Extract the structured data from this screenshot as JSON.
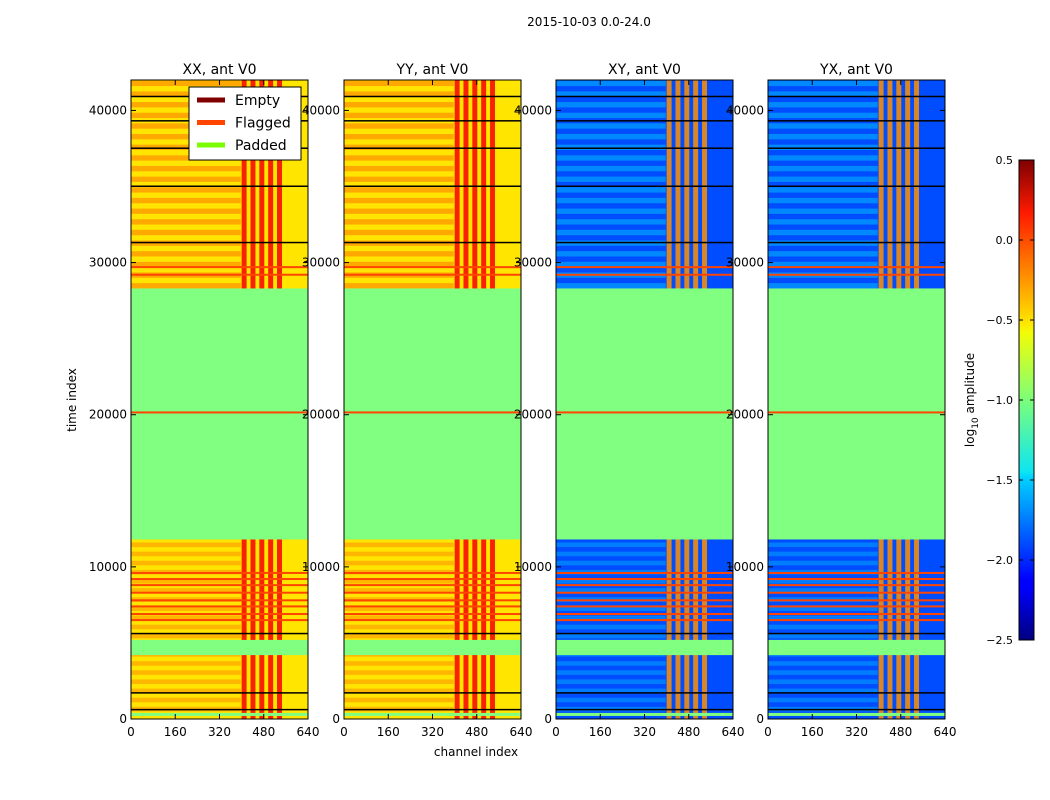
{
  "title": "2015-10-03 0.0-24.0",
  "xlabel": "channel index",
  "ylabel": "time index",
  "chart_data": {
    "type": "heatmap",
    "title": "2015-10-03 0.0-24.0",
    "xlabel": "channel index",
    "ylabel": "time index",
    "xlim": [
      0,
      640
    ],
    "ylim": [
      0,
      42000
    ],
    "xticks": [
      0,
      160,
      320,
      480,
      640
    ],
    "yticks": [
      0,
      10000,
      20000,
      30000,
      40000
    ],
    "xtick_labels": [
      "0",
      "160",
      "320",
      "480",
      "640"
    ],
    "ytick_labels": [
      "0",
      "10000",
      "20000",
      "30000",
      "40000"
    ],
    "panels": [
      {
        "title": "XX, ant V0",
        "product": "XX",
        "base_log_amplitude": -0.55,
        "hot_channels_log_amplitude": 0.15
      },
      {
        "title": "YY, ant V0",
        "product": "YY",
        "base_log_amplitude": -0.55,
        "hot_channels_log_amplitude": 0.15
      },
      {
        "title": "XY, ant V0",
        "product": "XY",
        "base_log_amplitude": -1.9,
        "hot_channels_log_amplitude": -0.3
      },
      {
        "title": "YX, ant V0",
        "product": "YX",
        "base_log_amplitude": -1.9,
        "hot_channels_log_amplitude": -0.3
      }
    ],
    "padded_time_ranges": [
      [
        200,
        400
      ],
      [
        4200,
        5200
      ],
      [
        11800,
        28300
      ]
    ],
    "flagged_rows": [
      6500,
      6900,
      7400,
      7800,
      8300,
      8800,
      9200,
      9600,
      20150,
      29200,
      29700
    ],
    "empty_rows": [
      600,
      1700,
      5600,
      31300,
      35000,
      37500,
      39300,
      40900
    ],
    "legend": {
      "location": "upper-center of first panel",
      "entries": [
        {
          "label": "Empty",
          "color": "#800000"
        },
        {
          "label": "Flagged",
          "color": "#ff4500"
        },
        {
          "label": "Padded",
          "color": "#7cfc00"
        }
      ]
    },
    "colorbar": {
      "label": "log10 amplitude",
      "label_main": "log",
      "label_sub": "10",
      "label_rest": " amplitude",
      "range": [
        -2.5,
        0.5
      ],
      "ticks": [
        0.5,
        0.0,
        -0.5,
        -1.0,
        -1.5,
        -2.0,
        -2.5
      ],
      "tick_labels": [
        "0.5",
        "0.0",
        "−0.5",
        "−1.0",
        "−1.5",
        "−2.0",
        "−2.5"
      ],
      "colormap": "jet"
    }
  }
}
